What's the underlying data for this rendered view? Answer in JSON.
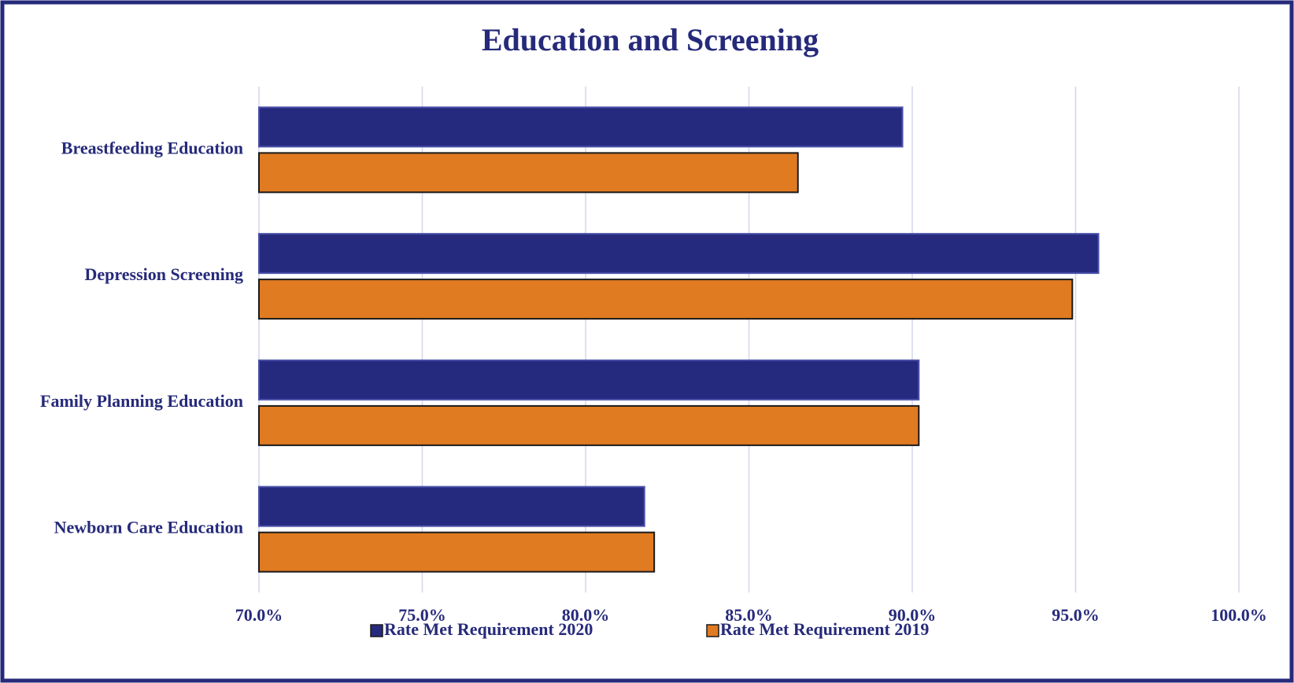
{
  "chart_data": {
    "type": "hbar",
    "title": "Education and Screening",
    "categories": [
      "Breastfeeding Education",
      "Depression Screening",
      "Family Planning Education",
      "Newborn Care Education"
    ],
    "series": [
      {
        "name": "Rate Met Requirement 2020",
        "color": "#262a7f",
        "values": [
          89.7,
          95.7,
          90.2,
          81.8
        ]
      },
      {
        "name": "Rate Met Requirement 2019",
        "color": "#e07b22",
        "values": [
          86.5,
          94.9,
          90.2,
          82.1
        ]
      }
    ],
    "xlim": [
      70,
      100
    ],
    "xticks": [
      {
        "value": 70,
        "label": "70.0%"
      },
      {
        "value": 75,
        "label": "75.0%"
      },
      {
        "value": 80,
        "label": "80.0%"
      },
      {
        "value": 85,
        "label": "85.0%"
      },
      {
        "value": 90,
        "label": "90.0%"
      },
      {
        "value": 95,
        "label": "95.0%"
      },
      {
        "value": 100,
        "label": "100.0%"
      }
    ],
    "grid": true,
    "legend": "bottom"
  }
}
